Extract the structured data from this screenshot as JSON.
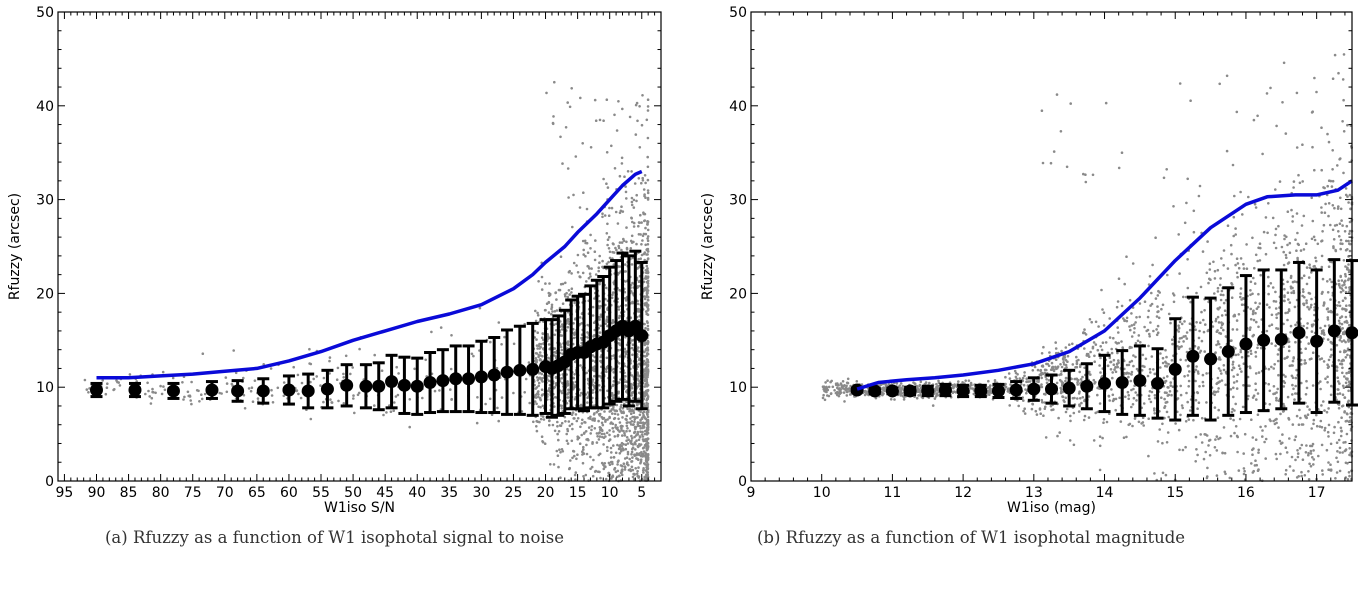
{
  "captions": [
    "(a) Rfuzzy as a function of W1 isophotal signal to noise",
    "(b) Rfuzzy as a function of W1 isophotal magnitude"
  ],
  "colors": {
    "curve": "#0a0ad8",
    "points": "#8a8a8a",
    "bins": "#000000"
  },
  "chart_data": [
    {
      "type": "scatter",
      "title": "",
      "xlabel": "W1iso S/N",
      "ylabel": "Rfuzzy (arcsec)",
      "xlim": [
        96,
        2
      ],
      "ylim": [
        0,
        50
      ],
      "x_inverted": true,
      "xticks": [
        95,
        90,
        85,
        80,
        75,
        70,
        65,
        60,
        55,
        50,
        45,
        40,
        35,
        30,
        25,
        20,
        15,
        10,
        5
      ],
      "yticks": [
        0,
        10,
        20,
        30,
        40,
        50
      ],
      "grid": false,
      "series": [
        {
          "kind": "line",
          "color": "#0a0ad8",
          "x": [
            90,
            85,
            80,
            75,
            70,
            65,
            60,
            55,
            50,
            45,
            40,
            35,
            30,
            25,
            22,
            20,
            17,
            15,
            12,
            10,
            8,
            6,
            5
          ],
          "y": [
            11.0,
            11.0,
            11.2,
            11.4,
            11.7,
            12.0,
            12.8,
            13.8,
            15.0,
            16.0,
            17.0,
            17.8,
            18.8,
            20.5,
            22.0,
            23.3,
            25.0,
            26.5,
            28.5,
            30.0,
            31.5,
            32.7,
            33.0
          ]
        },
        {
          "kind": "errorbar",
          "color": "#000000",
          "x": [
            90,
            84,
            78,
            72,
            68,
            64,
            60,
            57,
            54,
            51,
            48,
            46,
            44,
            42,
            40,
            38,
            36,
            34,
            32,
            30,
            28,
            26,
            24,
            22,
            20,
            19,
            18,
            17,
            16,
            15,
            14,
            13,
            12,
            11,
            10,
            9,
            8,
            7,
            6,
            5
          ],
          "y": [
            9.7,
            9.7,
            9.6,
            9.7,
            9.6,
            9.6,
            9.7,
            9.6,
            9.8,
            10.2,
            10.1,
            10.1,
            10.6,
            10.2,
            10.1,
            10.5,
            10.7,
            10.9,
            10.9,
            11.1,
            11.3,
            11.6,
            11.8,
            11.9,
            12.2,
            12.0,
            12.3,
            12.7,
            13.5,
            13.7,
            13.7,
            14.3,
            14.6,
            14.8,
            15.5,
            16.0,
            16.5,
            16.0,
            16.5,
            15.5
          ],
          "yerr": [
            0.7,
            0.7,
            0.8,
            0.9,
            1.1,
            1.3,
            1.5,
            1.8,
            2.0,
            2.2,
            2.3,
            2.5,
            2.8,
            3.0,
            3.0,
            3.2,
            3.3,
            3.5,
            3.5,
            3.8,
            4.0,
            4.5,
            4.7,
            4.9,
            5.0,
            5.2,
            5.3,
            5.5,
            5.8,
            6.0,
            6.2,
            6.5,
            6.8,
            7.0,
            7.3,
            7.5,
            7.8,
            8.0,
            8.0,
            7.8
          ]
        },
        {
          "kind": "scatter-cloud",
          "color": "#8a8a8a",
          "description_of_density": "dense toward low S/N"
        }
      ]
    },
    {
      "type": "scatter",
      "title": "",
      "xlabel": "W1iso (mag)",
      "ylabel": "Rfuzzy (arcsec)",
      "xlim": [
        9,
        17.5
      ],
      "ylim": [
        0,
        50
      ],
      "xticks": [
        9,
        10,
        11,
        12,
        13,
        14,
        15,
        16,
        17
      ],
      "yticks": [
        0,
        10,
        20,
        30,
        40,
        50
      ],
      "grid": false,
      "series": [
        {
          "kind": "line",
          "color": "#0a0ad8",
          "x": [
            10.5,
            10.8,
            11.2,
            11.6,
            12.0,
            12.5,
            13.0,
            13.5,
            14.0,
            14.5,
            15.0,
            15.5,
            16.0,
            16.3,
            16.7,
            17.0,
            17.3,
            17.5
          ],
          "y": [
            9.8,
            10.5,
            10.8,
            11.0,
            11.3,
            11.8,
            12.5,
            13.8,
            16.0,
            19.5,
            23.5,
            27.0,
            29.5,
            30.3,
            30.5,
            30.5,
            31.0,
            32.0
          ]
        },
        {
          "kind": "errorbar",
          "color": "#000000",
          "x": [
            10.5,
            10.75,
            11.0,
            11.25,
            11.5,
            11.75,
            12.0,
            12.25,
            12.5,
            12.75,
            13.0,
            13.25,
            13.5,
            13.75,
            14.0,
            14.25,
            14.5,
            14.75,
            15.0,
            15.25,
            15.5,
            15.75,
            16.0,
            16.25,
            16.5,
            16.75,
            17.0,
            17.25,
            17.5
          ],
          "y": [
            9.7,
            9.6,
            9.6,
            9.6,
            9.6,
            9.7,
            9.6,
            9.6,
            9.6,
            9.7,
            9.8,
            9.8,
            9.9,
            10.1,
            10.4,
            10.5,
            10.7,
            10.4,
            11.9,
            13.3,
            13.0,
            13.8,
            14.6,
            15.0,
            15.1,
            15.8,
            14.9,
            16.0,
            15.8
          ],
          "yerr": [
            0.2,
            0.3,
            0.3,
            0.4,
            0.5,
            0.6,
            0.6,
            0.6,
            0.7,
            0.9,
            1.2,
            1.5,
            1.9,
            2.4,
            3.0,
            3.4,
            3.7,
            3.7,
            5.4,
            6.3,
            6.5,
            6.8,
            7.3,
            7.5,
            7.4,
            7.5,
            7.6,
            7.6,
            7.7
          ]
        },
        {
          "kind": "scatter-cloud",
          "color": "#8a8a8a",
          "description_of_density": "dense toward faint magnitudes"
        }
      ]
    }
  ]
}
